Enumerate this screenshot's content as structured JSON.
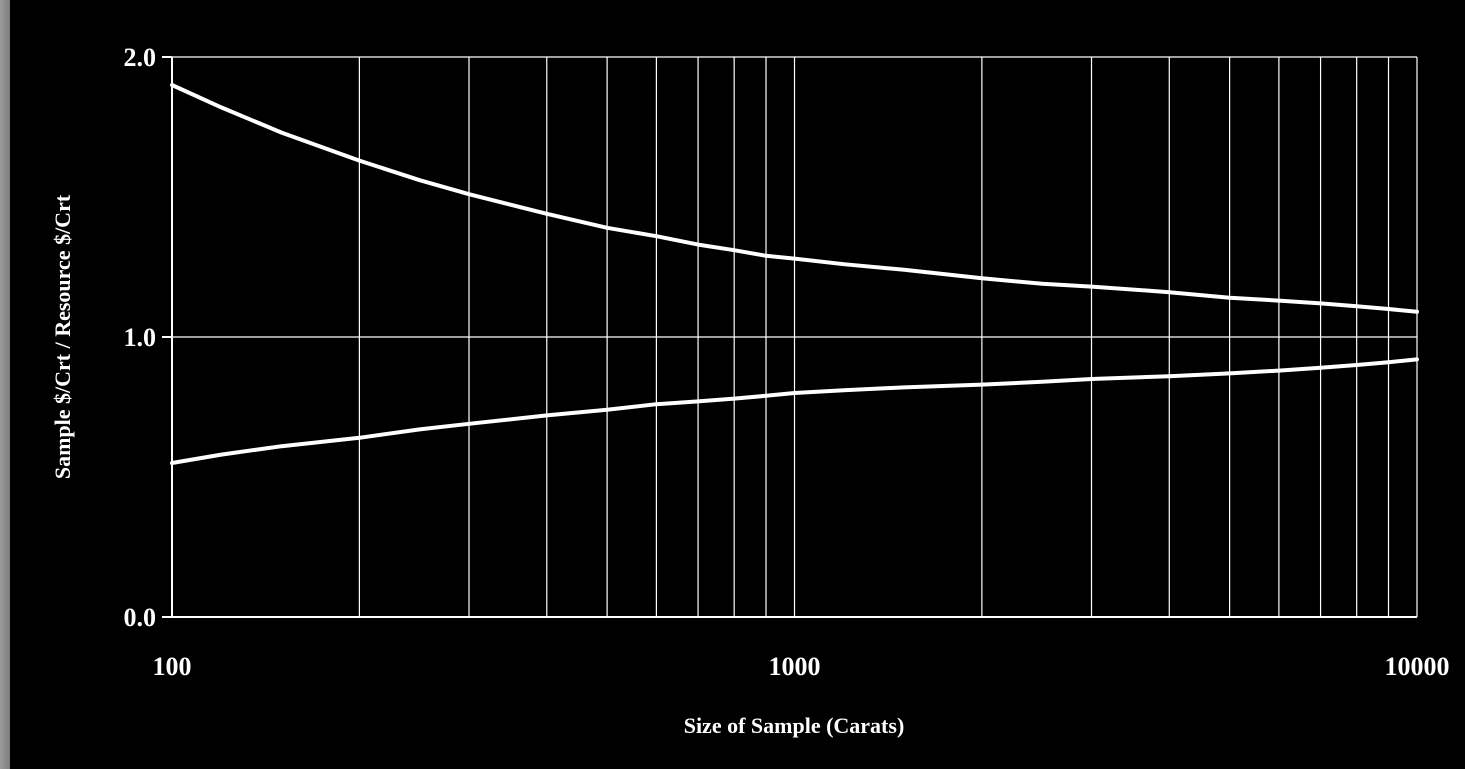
{
  "chart_data": {
    "type": "line",
    "title": "",
    "xlabel": "Size of Sample (Carats)",
    "ylabel": "Sample $/Crt / Resource $/Crt",
    "xscale": "log",
    "xlim": [
      100,
      10000
    ],
    "ylim": [
      0.0,
      2.0
    ],
    "x_ticks": [
      100,
      1000,
      10000
    ],
    "x_tick_labels": [
      "100",
      "1000",
      "10000"
    ],
    "y_ticks": [
      0.0,
      1.0,
      2.0
    ],
    "y_tick_labels": [
      "0.0",
      "1.0",
      "2.0"
    ],
    "grid": {
      "x_minor_log": true,
      "y_major": true
    },
    "legend": "none",
    "series": [
      {
        "x": [
          100,
          120,
          150,
          200,
          250,
          300,
          400,
          500,
          600,
          700,
          800,
          900,
          1000,
          1200,
          1500,
          2000,
          2500,
          3000,
          4000,
          5000,
          6000,
          7000,
          8000,
          9000,
          10000
        ],
        "values": [
          1.9,
          1.82,
          1.73,
          1.63,
          1.56,
          1.51,
          1.44,
          1.39,
          1.36,
          1.33,
          1.31,
          1.29,
          1.28,
          1.26,
          1.24,
          1.21,
          1.19,
          1.18,
          1.16,
          1.14,
          1.13,
          1.12,
          1.11,
          1.1,
          1.09
        ]
      },
      {
        "x": [
          100,
          120,
          150,
          200,
          250,
          300,
          400,
          500,
          600,
          700,
          800,
          900,
          1000,
          1200,
          1500,
          2000,
          2500,
          3000,
          4000,
          5000,
          6000,
          7000,
          8000,
          9000,
          10000
        ],
        "values": [
          0.55,
          0.58,
          0.61,
          0.64,
          0.67,
          0.69,
          0.72,
          0.74,
          0.76,
          0.77,
          0.78,
          0.79,
          0.8,
          0.81,
          0.82,
          0.83,
          0.84,
          0.85,
          0.86,
          0.87,
          0.88,
          0.89,
          0.9,
          0.91,
          0.92
        ]
      }
    ],
    "colors": {
      "background": "#000000",
      "lines": "#ffffff",
      "frame": "#8c8c8c"
    }
  }
}
